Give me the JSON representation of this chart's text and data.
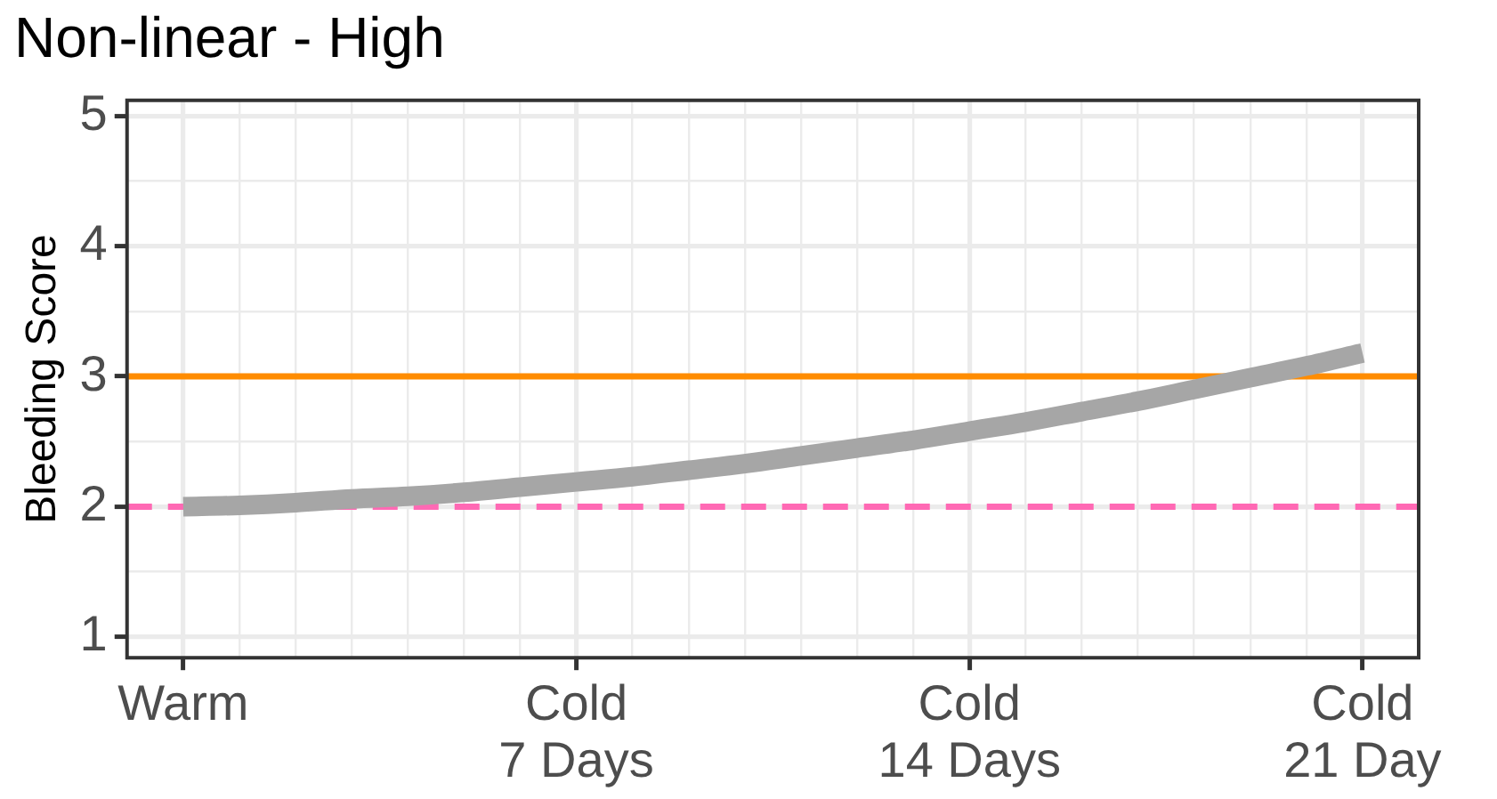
{
  "chart_data": {
    "type": "line",
    "title": "Non-linear - High",
    "ylabel": "Bleeding Score",
    "categories": [
      "Warm",
      null,
      null,
      null,
      null,
      null,
      null,
      "Cold\n7 Days",
      null,
      null,
      null,
      null,
      null,
      null,
      "Cold\n14 Days",
      null,
      null,
      null,
      null,
      null,
      null,
      "Cold\n21 Day"
    ],
    "series": [
      {
        "color": "#a6a6a6",
        "values": [
          2.0,
          2.01,
          2.03,
          2.06,
          2.08,
          2.11,
          2.15,
          2.19,
          2.23,
          2.28,
          2.33,
          2.39,
          2.45,
          2.51,
          2.58,
          2.65,
          2.73,
          2.81,
          2.9,
          2.99,
          3.08,
          3.18
        ]
      }
    ],
    "ylim": [
      0.84,
      5.12
    ],
    "yticks": [
      1,
      {
        "value": 1.5,
        "label": null
      },
      2,
      {
        "value": 2.5,
        "label": null
      },
      3,
      {
        "value": 3.5,
        "label": null
      },
      4,
      {
        "value": 4.5,
        "label": null
      },
      5
    ],
    "ref_lines": [
      {
        "axis": "y",
        "value": 3,
        "color": "#ff8c00",
        "line_style": "solid"
      },
      {
        "axis": "y",
        "value": 2,
        "color": "#ff69b4",
        "line_style": "dashed"
      }
    ],
    "grid": true
  }
}
